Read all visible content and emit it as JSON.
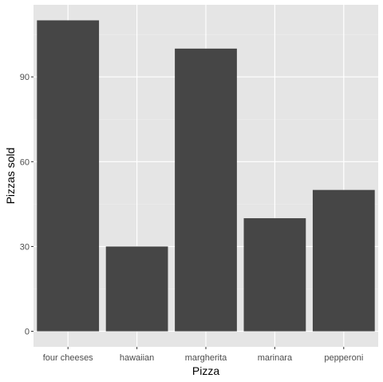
{
  "chart_data": {
    "type": "bar",
    "xlabel": "Pizza",
    "ylabel": "Pizzas sold",
    "categories": [
      "four cheeses",
      "hawaiian",
      "margherita",
      "marinara",
      "pepperoni"
    ],
    "values": [
      110,
      30,
      100,
      40,
      50
    ],
    "ylim": [
      -5.5,
      115.5
    ],
    "yticks": [
      0,
      30,
      60,
      90
    ],
    "ytick_labels": [
      "0",
      "30",
      "60",
      "90"
    ],
    "grid": true,
    "legend": "none",
    "colors": {
      "bar": "#464646",
      "panel": "#e5e5e5",
      "grid_major": "#ffffff",
      "grid_minor": "#f0f0f0"
    }
  }
}
